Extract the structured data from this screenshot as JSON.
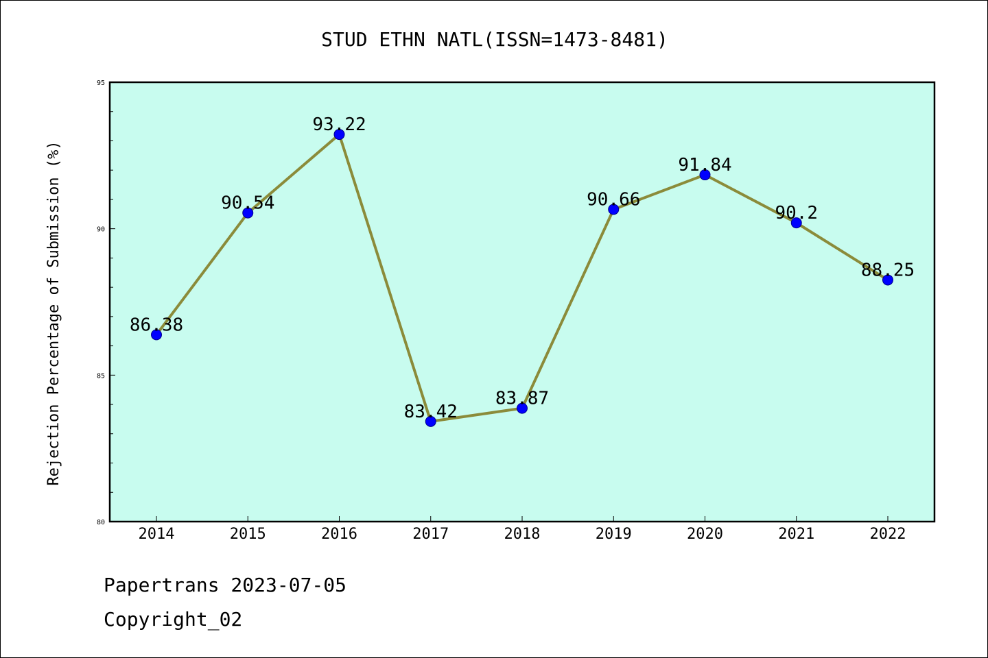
{
  "chart_data": {
    "type": "line",
    "title": "STUD ETHN NATL(ISSN=1473-8481)",
    "ylabel": "Rejection Percentage of Submission (%)",
    "xlabel": "",
    "categories": [
      "2014",
      "2015",
      "2016",
      "2017",
      "2018",
      "2019",
      "2020",
      "2021",
      "2022"
    ],
    "series": [
      {
        "values": [
          86.38,
          90.54,
          93.22,
          83.42,
          83.87,
          90.66,
          91.84,
          90.2,
          88.25
        ],
        "labels": [
          "86.38",
          "90.54",
          "93.22",
          "83.42",
          "83.87",
          "90.66",
          "91.84",
          "90.2",
          "88.25"
        ]
      }
    ],
    "ylim": [
      80,
      95
    ],
    "yticks": [
      "80",
      "85",
      "90",
      "95"
    ],
    "grid": false,
    "legend": "none",
    "colors": {
      "plot_background": "#c8fcef",
      "line": "#8b8b3a",
      "marker": "#0000ff",
      "marker_edge": "#00008b",
      "axis": "#000000"
    }
  },
  "footer": {
    "line1": "Papertrans 2023-07-05",
    "line2": "Copyright_02"
  }
}
